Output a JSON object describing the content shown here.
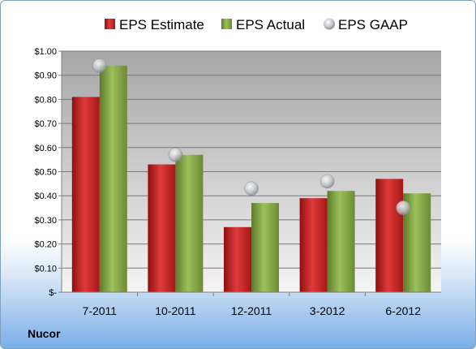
{
  "company": "Nucor",
  "colors": {
    "estimate": "#d42a2a",
    "actual": "#8cae4c",
    "gaap": "#b8bcc4"
  },
  "chart_data": {
    "type": "bar",
    "categories": [
      "7-2011",
      "10-2011",
      "12-2011",
      "3-2012",
      "6-2012"
    ],
    "series": [
      {
        "name": "EPS Estimate",
        "values": [
          0.81,
          0.53,
          0.27,
          0.39,
          0.47
        ]
      },
      {
        "name": "EPS Actual",
        "values": [
          0.94,
          0.57,
          0.37,
          0.42,
          0.41
        ]
      },
      {
        "name": "EPS GAAP",
        "values": [
          0.94,
          0.57,
          0.43,
          0.46,
          0.35
        ],
        "marker": "circle"
      }
    ],
    "ylim": [
      0,
      1.0
    ],
    "yticks": [
      0,
      0.1,
      0.2,
      0.3,
      0.4,
      0.5,
      0.6,
      0.7,
      0.8,
      0.9,
      1.0
    ],
    "ytick_labels": [
      "$-",
      "$0.10",
      "$0.20",
      "$0.30",
      "$0.40",
      "$0.50",
      "$0.60",
      "$0.70",
      "$0.80",
      "$0.90",
      "$1.00"
    ],
    "grid": true,
    "legend": "top"
  }
}
